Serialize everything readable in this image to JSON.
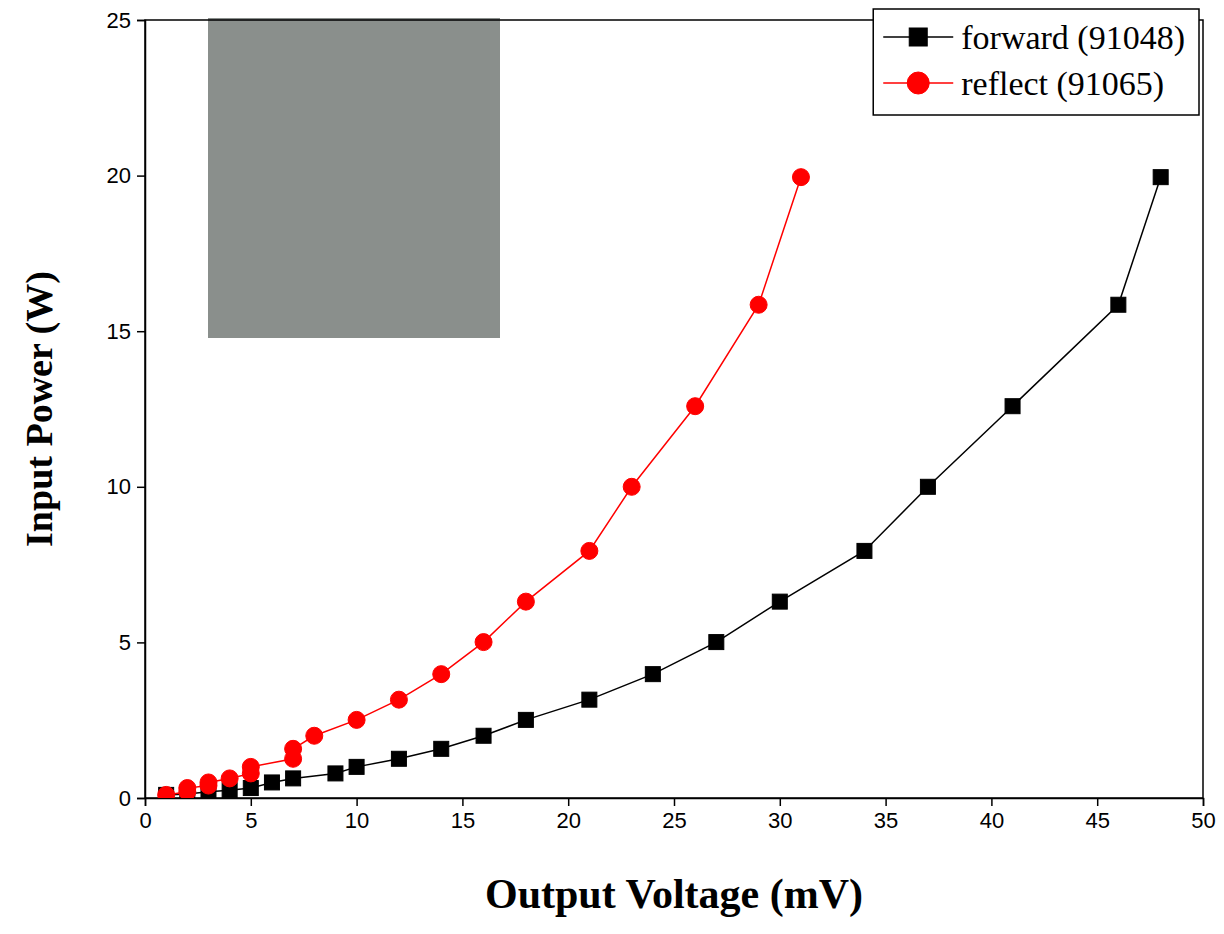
{
  "chart_data": {
    "type": "line",
    "x_label": "Output Voltage (mV)",
    "y_label": "Input Power (W)",
    "xlim": [
      0,
      50
    ],
    "xticks": [
      0,
      5,
      10,
      15,
      20,
      25,
      30,
      35,
      40,
      45,
      50
    ],
    "ylim": [
      0,
      25
    ],
    "yticks": [
      0,
      5,
      10,
      15,
      20,
      25
    ],
    "grid": false,
    "legend": "upper right",
    "series": [
      {
        "name": "forward (91048)",
        "color": "#000000",
        "marker": "square",
        "line_style": "solid",
        "x": [
          1,
          2,
          3,
          4,
          5,
          6,
          7,
          9,
          10,
          12,
          14,
          16,
          18,
          21,
          24,
          27,
          30,
          34,
          37,
          41,
          46,
          48
        ],
        "values": [
          0.1,
          0.13,
          0.2,
          0.25,
          0.32,
          0.5,
          0.63,
          0.79,
          1.0,
          1.26,
          1.58,
          2.0,
          2.51,
          3.16,
          3.98,
          5.01,
          6.31,
          7.94,
          10.0,
          12.59,
          15.85,
          19.95
        ]
      },
      {
        "name": "reflect (91065)",
        "color": "#ff0000",
        "marker": "circle",
        "line_style": "solid",
        "x": [
          1,
          2,
          2,
          3,
          3,
          4,
          5,
          5,
          7,
          7,
          8,
          10,
          12,
          14,
          16,
          18,
          21,
          23,
          26,
          29,
          31
        ],
        "values": [
          0.1,
          0.2,
          0.32,
          0.4,
          0.5,
          0.63,
          0.79,
          1.0,
          1.26,
          1.58,
          2.0,
          2.51,
          3.16,
          3.98,
          5.01,
          6.31,
          7.94,
          10.0,
          12.59,
          15.85,
          19.95
        ]
      }
    ]
  }
}
